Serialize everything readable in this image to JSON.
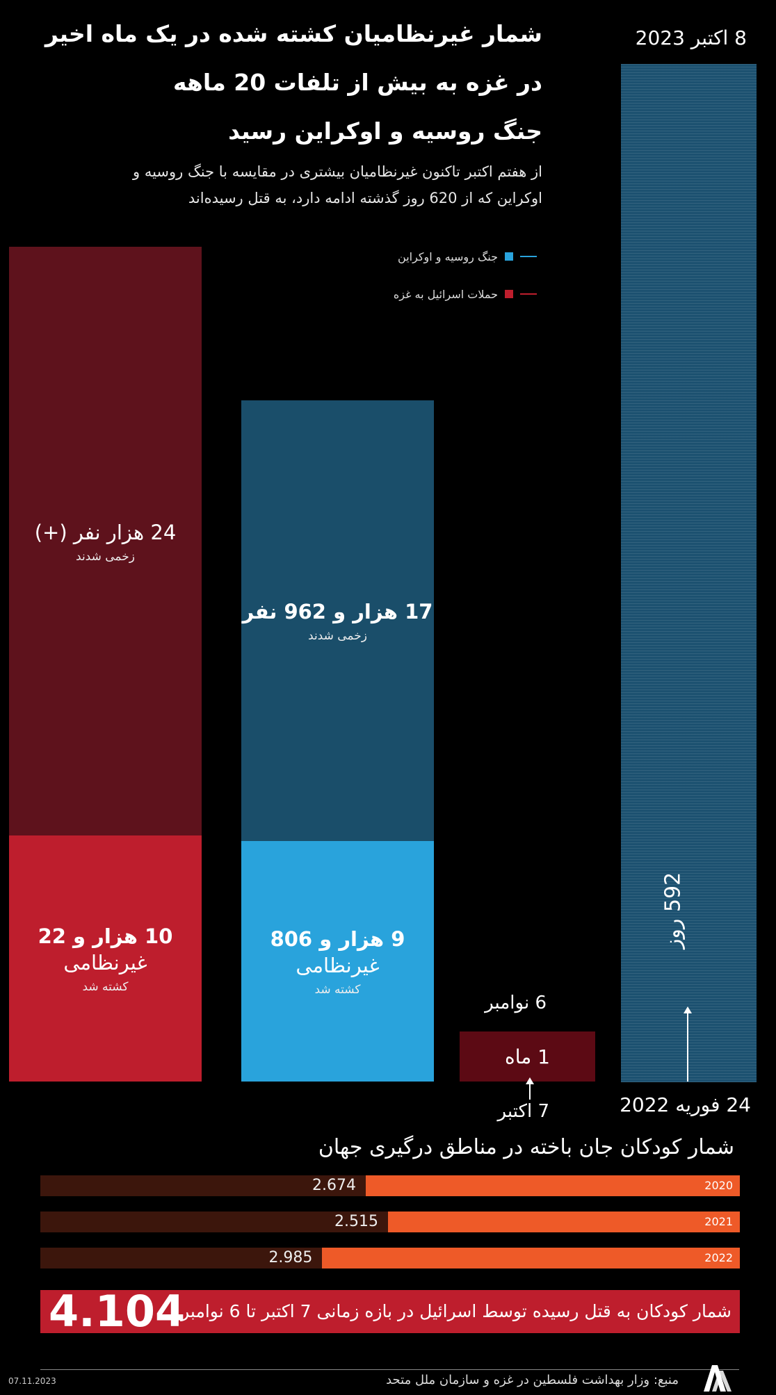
{
  "title_lines": [
    "شمار غیرنظامیان کشته شده در یک ماه اخیر",
    "در غزه به بیش از تلفات 20 ماهه",
    "جنگ روسیه و اوکراین رسید"
  ],
  "subtitle_lines": [
    "از هفتم اکتبر تاکنون غیرنظامیان بیشتری در مقایسه با جنگ روسیه و",
    "اوکراین که از 620 روز گذشته ادامه دارد، به قتل رسیده‌اند"
  ],
  "legend": [
    {
      "label": "جنگ روسیه و اوکراین",
      "color": "#29a3dc"
    },
    {
      "label": "حملات اسرائیل به غزه",
      "color": "#be1e2d"
    }
  ],
  "colors": {
    "gaza_injured": "#5e121c",
    "gaza_killed": "#be1e2d",
    "ukraine_injured": "#1a4e6a",
    "ukraine_killed": "#29a3dc",
    "ukraine_timeline": "#1c5170",
    "gaza_timeline": "#5c0a14",
    "children_fill": "#ee5a28",
    "children_track": "#3c160c"
  },
  "chart_data": [
    {
      "type": "bar",
      "stacked": true,
      "categories": [
        "حملات اسرائیل به غزه",
        "جنگ روسیه و اوکراین"
      ],
      "series": [
        {
          "name": "کشته شد",
          "values": [
            10022,
            9806
          ],
          "labels": [
            {
              "number": "10 هزار و 22",
              "group": "غیرنظامی",
              "caption": "کشته شد"
            },
            {
              "number": "9 هزار و 806",
              "group": "غیرنظامی",
              "caption": "کشته شد"
            }
          ]
        },
        {
          "name": "زخمی شدند",
          "values": [
            24000,
            17962
          ],
          "labels": [
            {
              "number": "24 هزار نفر (+)",
              "caption": "زخمی شدند"
            },
            {
              "number": "17 هزار و 962 نفر",
              "caption": "زخمی شدند"
            }
          ]
        }
      ]
    },
    {
      "type": "bar",
      "unit": "day",
      "bars": [
        {
          "label_value": "1 ماه",
          "days": 31,
          "start": "7 اکتبر",
          "end": "6 نوامبر"
        },
        {
          "label_value": "592 روز",
          "days": 592,
          "start": "24 فوریه 2022",
          "end": "8 اکتبر 2023"
        }
      ]
    },
    {
      "type": "bar",
      "title": "شمار کودکان جان باخته در مناطق درگیری جهان",
      "categories": [
        "2020",
        "2021",
        "2022"
      ],
      "values": [
        2674,
        2515,
        2985
      ],
      "value_labels": [
        "2.674",
        "2.515",
        "2.985"
      ],
      "xlim": [
        0,
        5000
      ]
    }
  ],
  "gaza_children": {
    "number": "4.104",
    "text": "شمار کودکان به قتل رسیده توسط اسرائیل در بازه زمانی 7 اکتبر تا 6 نوامبر"
  },
  "footer": {
    "date": "07.11.2023",
    "source": "منبع: وزار بهداشت فلسطین در غزه و سازمان ملل متحد",
    "logo": "AA"
  }
}
